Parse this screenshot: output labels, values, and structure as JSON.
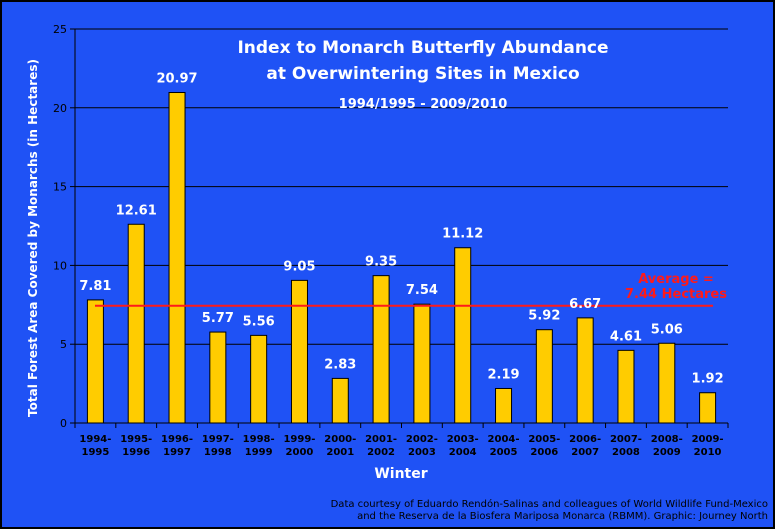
{
  "chart_data": {
    "type": "bar",
    "title_lines": [
      "Index to Monarch Butterfly Abundance",
      "at Overwintering Sites in Mexico"
    ],
    "subtitle": "1994/1995 - 2009/2010",
    "xlabel": "Winter",
    "ylabel": "Total Forest Area  Covered by Monarchs (in Hectares)",
    "ylim": [
      0,
      25
    ],
    "yticks": [
      0,
      5,
      10,
      15,
      20,
      25
    ],
    "grid": true,
    "categories": [
      [
        "1994-",
        "1995"
      ],
      [
        "1995-",
        "1996"
      ],
      [
        "1996-",
        "1997"
      ],
      [
        "1997-",
        "1998"
      ],
      [
        "1998-",
        "1999"
      ],
      [
        "1999-",
        "2000"
      ],
      [
        "2000-",
        "2001"
      ],
      [
        "2001-",
        "2002"
      ],
      [
        "2002-",
        "2003"
      ],
      [
        "2003-",
        "2004"
      ],
      [
        "2004-",
        "2005"
      ],
      [
        "2005-",
        "2006"
      ],
      [
        "2006-",
        "2007"
      ],
      [
        "2007-",
        "2008"
      ],
      [
        "2008-",
        "2009"
      ],
      [
        "2009-",
        "2010"
      ]
    ],
    "values": [
      7.81,
      12.61,
      20.97,
      5.77,
      5.56,
      9.05,
      2.83,
      9.35,
      7.54,
      11.12,
      2.19,
      5.92,
      6.67,
      4.61,
      5.06,
      1.92
    ],
    "value_labels": [
      "7.81",
      "12.61",
      "20.97",
      "5.77",
      "5.56",
      "9.05",
      "2.83",
      "9.35",
      "7.54",
      "11.12",
      "2.19",
      "5.92",
      "6.67",
      "4.61",
      "5.06",
      "1.92"
    ],
    "average": {
      "value": 7.44,
      "label_lines": [
        "Average =",
        "7.44 Hectares"
      ]
    },
    "colors": {
      "bar": "#ffcc00",
      "background": "#1f52f5",
      "average_line": "#ff1a1a"
    }
  },
  "credit_lines": [
    "Data courtesy of Eduardo Rendón-Salinas and colleagues of World Wildlife Fund-Mexico",
    "and the Reserva de la Biosfera Mariposa Monarca (RBMM). Graphic: Journey North"
  ]
}
